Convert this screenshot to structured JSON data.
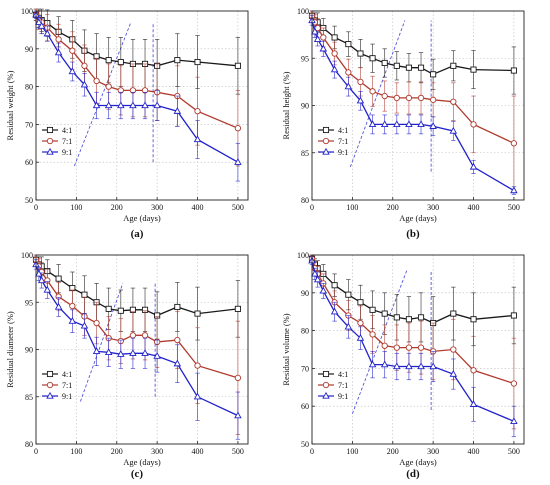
{
  "chart_data": [
    {
      "id": "a",
      "panel_label": "(a)",
      "type": "line",
      "ylabel": "Residual weight (%)",
      "xlabel": "Age (days)",
      "xlim": [
        0,
        525
      ],
      "ylim": [
        50,
        100
      ],
      "xticks": [
        0,
        100,
        200,
        300,
        400,
        500
      ],
      "yticks": [
        50,
        60,
        70,
        80,
        90,
        100
      ],
      "x": [
        0,
        7,
        14,
        28,
        56,
        90,
        120,
        150,
        180,
        210,
        240,
        270,
        300,
        350,
        400,
        500
      ],
      "series": [
        {
          "name": "4:1",
          "color": "#1a1a1a",
          "marker": "square",
          "values": [
            99,
            98.2,
            97.6,
            96.8,
            94.5,
            92.5,
            89.5,
            88,
            87,
            86.5,
            86,
            86,
            85.5,
            87,
            86.5,
            85.5
          ],
          "errors": [
            1.5,
            2.5,
            3,
            3.5,
            4,
            5,
            5.5,
            6,
            6,
            6.5,
            6.5,
            6.5,
            7,
            7,
            7,
            7.5
          ]
        },
        {
          "name": "7:1",
          "color": "#b03a2e",
          "marker": "circle",
          "values": [
            99,
            97.6,
            97,
            95.6,
            92.5,
            89.5,
            85.5,
            81.5,
            80,
            79,
            79,
            79,
            78.5,
            77.5,
            73.5,
            69
          ],
          "errors": [
            1.5,
            2.5,
            3,
            3.5,
            4,
            5,
            5.5,
            6,
            6,
            6.5,
            7,
            7,
            7.5,
            8,
            9,
            10
          ]
        },
        {
          "name": "9:1",
          "color": "#2222cc",
          "marker": "triangle",
          "values": [
            99,
            97,
            96,
            94,
            89,
            84,
            80.5,
            75,
            75,
            75,
            75,
            75,
            75,
            73.5,
            66,
            60
          ],
          "errors": [
            1,
            1.5,
            2,
            2,
            2.5,
            2.5,
            3,
            3.5,
            3.5,
            3.5,
            3.5,
            3.5,
            4,
            4,
            5,
            5
          ]
        }
      ],
      "trend_lines": [
        {
          "from": [
            95,
            59
          ],
          "to": [
            235,
            97
          ]
        },
        {
          "from": [
            290,
            60
          ],
          "to": [
            290,
            97
          ]
        }
      ]
    },
    {
      "id": "b",
      "panel_label": "(b)",
      "type": "line",
      "ylabel": "Residual height (%)",
      "xlabel": "Age (days)",
      "xlim": [
        0,
        525
      ],
      "ylim": [
        80,
        100
      ],
      "xticks": [
        0,
        100,
        200,
        300,
        400,
        500
      ],
      "yticks": [
        80,
        85,
        90,
        95,
        100
      ],
      "x": [
        0,
        7,
        14,
        28,
        56,
        90,
        120,
        150,
        180,
        210,
        240,
        270,
        300,
        350,
        400,
        500
      ],
      "series": [
        {
          "name": "4:1",
          "color": "#1a1a1a",
          "marker": "square",
          "values": [
            99.5,
            99,
            98.8,
            98.2,
            97.2,
            96.5,
            95.5,
            95,
            94.5,
            94.2,
            94,
            94,
            93.3,
            94.2,
            93.8,
            93.7
          ],
          "errors": [
            0.5,
            0.8,
            1,
            1,
            1.2,
            1.3,
            1.5,
            1.5,
            1.5,
            1.5,
            1.5,
            1.6,
            1.6,
            1.6,
            2,
            2.5
          ]
        },
        {
          "name": "7:1",
          "color": "#b03a2e",
          "marker": "circle",
          "values": [
            99.5,
            98.8,
            98.2,
            97.2,
            95.5,
            93.5,
            92.5,
            91.5,
            91,
            90.8,
            90.8,
            90.8,
            90.6,
            90.4,
            88,
            86
          ],
          "errors": [
            0.5,
            0.8,
            1,
            1,
            1.2,
            1.4,
            1.5,
            1.6,
            1.6,
            1.6,
            1.7,
            1.7,
            1.8,
            2,
            3,
            5
          ]
        },
        {
          "name": "9:1",
          "color": "#2222cc",
          "marker": "triangle",
          "values": [
            99,
            97.8,
            97,
            96,
            93.8,
            92,
            90.5,
            88,
            88,
            88,
            88,
            88,
            87.8,
            87.3,
            83.5,
            81
          ],
          "errors": [
            0.5,
            0.6,
            0.7,
            0.8,
            0.9,
            1,
            1,
            1,
            1,
            1,
            1,
            1,
            1,
            1,
            0.7,
            0.4
          ]
        }
      ],
      "trend_lines": [
        {
          "from": [
            95,
            83.5
          ],
          "to": [
            230,
            99
          ]
        },
        {
          "from": [
            295,
            83
          ],
          "to": [
            295,
            99
          ]
        }
      ]
    },
    {
      "id": "c",
      "panel_label": "(c)",
      "type": "line",
      "ylabel": "Residual diameter (%)",
      "xlabel": "Age (days)",
      "xlim": [
        0,
        525
      ],
      "ylim": [
        80,
        100
      ],
      "xticks": [
        0,
        100,
        200,
        300,
        400,
        500
      ],
      "yticks": [
        80,
        85,
        90,
        95,
        100
      ],
      "x": [
        0,
        7,
        14,
        28,
        56,
        90,
        120,
        150,
        180,
        210,
        240,
        270,
        300,
        350,
        400,
        500
      ],
      "series": [
        {
          "name": "4:1",
          "color": "#1a1a1a",
          "marker": "square",
          "values": [
            99.5,
            99,
            98.8,
            98.3,
            97.5,
            96.5,
            95.8,
            95,
            94.3,
            94.1,
            94.2,
            94.2,
            93.6,
            94.5,
            93.8,
            94.3
          ],
          "errors": [
            0.5,
            0.8,
            1,
            1.2,
            1.5,
            1.7,
            2,
            2,
            2.2,
            2.2,
            2.3,
            2.3,
            2.5,
            2.6,
            2.8,
            3
          ]
        },
        {
          "name": "7:1",
          "color": "#b03a2e",
          "marker": "circle",
          "values": [
            99.5,
            98.8,
            98.2,
            97.3,
            95.6,
            94.6,
            93.5,
            92.8,
            91.2,
            90.9,
            91.5,
            91.5,
            90.8,
            91,
            88.3,
            87
          ],
          "errors": [
            0.5,
            0.8,
            1,
            1.2,
            1.5,
            1.7,
            2,
            2.2,
            2.3,
            2.4,
            2.5,
            2.6,
            2.7,
            3,
            4,
            6
          ]
        },
        {
          "name": "9:1",
          "color": "#2222cc",
          "marker": "triangle",
          "values": [
            99,
            98,
            97.3,
            96.3,
            94.5,
            93,
            92.5,
            89.8,
            89.7,
            89.5,
            89.6,
            89.6,
            89.3,
            88.5,
            85,
            83
          ],
          "errors": [
            0.5,
            0.7,
            0.8,
            0.9,
            1,
            1.2,
            1.3,
            1.5,
            1.5,
            1.5,
            1.6,
            1.6,
            1.7,
            2,
            2.5,
            2.5
          ]
        }
      ],
      "trend_lines": [
        {
          "from": [
            110,
            84.5
          ],
          "to": [
            215,
            97
          ]
        },
        {
          "from": [
            295,
            85
          ],
          "to": [
            295,
            97
          ]
        }
      ]
    },
    {
      "id": "d",
      "panel_label": "(d)",
      "type": "line",
      "ylabel": "Residual volume (%)",
      "xlabel": "Age (days)",
      "xlim": [
        0,
        525
      ],
      "ylim": [
        50,
        100
      ],
      "xticks": [
        0,
        100,
        200,
        300,
        400,
        500
      ],
      "yticks": [
        50,
        60,
        70,
        80,
        90,
        100
      ],
      "x": [
        0,
        7,
        14,
        28,
        56,
        90,
        120,
        150,
        180,
        210,
        240,
        270,
        300,
        350,
        400,
        500
      ],
      "series": [
        {
          "name": "4:1",
          "color": "#1a1a1a",
          "marker": "square",
          "values": [
            99,
            97.5,
            96.5,
            95,
            92,
            89.5,
            87.5,
            85.5,
            84.5,
            83.5,
            83,
            83.5,
            82,
            84.5,
            83,
            84
          ],
          "errors": [
            1,
            1.5,
            2,
            2.5,
            3,
            4,
            4.5,
            5,
            5.5,
            6,
            6,
            6.5,
            7,
            7,
            7,
            7.5
          ]
        },
        {
          "name": "7:1",
          "color": "#b03a2e",
          "marker": "circle",
          "values": [
            99,
            96.5,
            95,
            92.5,
            87.5,
            84,
            82,
            79,
            76,
            75.5,
            75.5,
            75.5,
            74.5,
            75,
            69.5,
            66
          ],
          "errors": [
            1,
            1.5,
            2,
            2.5,
            3,
            4,
            4.5,
            5,
            5.5,
            6,
            6.5,
            7,
            7.5,
            8,
            9,
            12
          ]
        },
        {
          "name": "9:1",
          "color": "#2222cc",
          "marker": "triangle",
          "values": [
            98.5,
            95,
            93.5,
            90.5,
            85,
            81,
            78,
            71,
            71,
            70.5,
            70.5,
            70.5,
            70.5,
            68.5,
            60.5,
            56
          ],
          "errors": [
            1,
            1.5,
            2,
            2,
            2.5,
            3,
            3,
            3.5,
            3.5,
            3.5,
            3.5,
            3.5,
            4,
            4,
            4.5,
            4
          ]
        }
      ],
      "trend_lines": [
        {
          "from": [
            100,
            58
          ],
          "to": [
            235,
            96
          ]
        },
        {
          "from": [
            295,
            59
          ],
          "to": [
            295,
            96
          ]
        }
      ]
    }
  ]
}
